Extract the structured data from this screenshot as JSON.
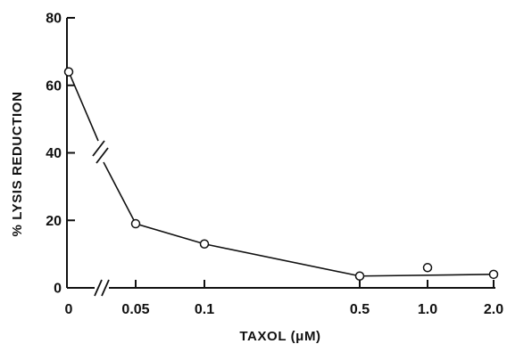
{
  "chart_data": {
    "type": "line",
    "xlabel": "TAXOL (μM)",
    "ylabel": "% LYSIS REDUCTION",
    "ylim": [
      0,
      80
    ],
    "yticks": [
      "0",
      "20",
      "40",
      "60",
      "80"
    ],
    "xticks": [
      "0",
      "0.05",
      "0.1",
      "0.5",
      "1.0",
      "2.0"
    ],
    "x_scale": "categorical with axis break between 0 and 0.05",
    "grid": false,
    "legend": "none",
    "series": [
      {
        "points": [
          {
            "x": "0",
            "y": 64
          },
          {
            "x": "0.05",
            "y": 19
          },
          {
            "x": "0.1",
            "y": 13
          },
          {
            "x": "0.5",
            "y": 3.5
          },
          {
            "x": "1.0",
            "y": 6
          },
          {
            "x": "2.0",
            "y": 4
          }
        ],
        "line_through": [
          "0",
          "0.05",
          "0.1",
          "0.5",
          "2.0"
        ]
      }
    ]
  }
}
